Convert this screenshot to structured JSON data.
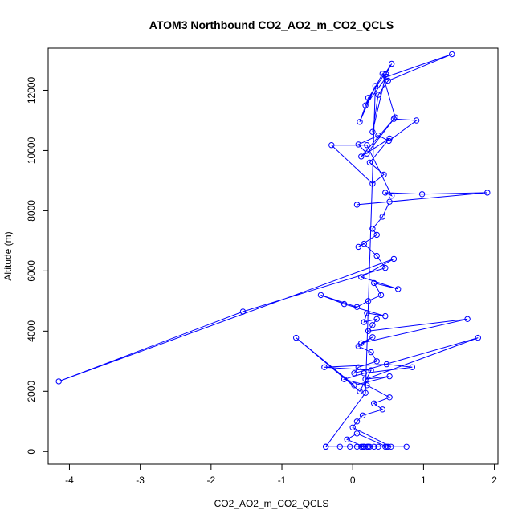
{
  "chart_data": {
    "type": "scatter",
    "title": "ATOM3 Northbound CO2_AO2_m_CO2_QCLS",
    "xlabel": "CO2_AO2_m_CO2_QCLS",
    "ylabel": "Altitude (m)",
    "xlim": [
      -4.3,
      2.05
    ],
    "ylim": [
      -420,
      13400
    ],
    "xticks": [
      -4,
      -3,
      -2,
      -1,
      0,
      1,
      2
    ],
    "xtick_labels": [
      "-4",
      "-3",
      "-2",
      "-1",
      "0",
      "1",
      "2"
    ],
    "yticks": [
      0,
      2000,
      4000,
      6000,
      8000,
      10000,
      12000
    ],
    "ytick_labels": [
      "0",
      "2000",
      "4000",
      "6000",
      "8000",
      "10000",
      "12000"
    ],
    "grid": false,
    "series_color": "#0000ff",
    "marker": "open-circle",
    "connected": true,
    "series": [
      {
        "x": [
          -0.38,
          0.18,
          0.32,
          0.1,
          0.22,
          0.55,
          0.47,
          0.28,
          0.36,
          0.5,
          1.4,
          0.48,
          0.18,
          0.42,
          0.6,
          0.2,
          0.08,
          0.36,
          0.51,
          0.9,
          0.58,
          0.12,
          0.52,
          0.24,
          0.44,
          0.28,
          -0.3,
          0.2,
          0.55,
          0.46,
          0.98,
          1.9,
          0.06,
          0.52,
          0.42,
          0.28,
          0.34,
          0.08,
          0.16,
          0.34,
          0.46,
          -1.55,
          -4.15,
          0.58,
          0.12,
          0.64,
          0.3,
          0.4,
          0.22,
          0.06,
          -0.45,
          -0.12,
          0.46,
          0.2,
          0.16,
          0.34,
          0.28,
          0.22,
          1.62,
          0.12,
          0.28,
          0.08,
          0.26,
          0.34,
          0.08,
          0.02,
          1.77,
          0.18,
          0.52,
          0.02,
          -0.8,
          0.1,
          0.26,
          -0.4,
          0.48,
          0.84,
          0.16,
          -0.12,
          0.2,
          0.52,
          0.3,
          0.42,
          0.14,
          0.06,
          0.0,
          0.54,
          0.48,
          0.06,
          -0.08,
          0.16,
          0.76,
          -0.38,
          0.22,
          0.12,
          -0.04,
          0.2,
          0.36,
          0.24,
          0.5,
          0.14,
          0.3,
          0.22,
          -0.18,
          0.06,
          0.16,
          0.46
        ],
        "y": [
          160,
          1950,
          12150,
          10950,
          11750,
          12880,
          12540,
          10620,
          11850,
          12320,
          13200,
          12450,
          11500,
          12550,
          11100,
          9900,
          10200,
          10500,
          10320,
          11000,
          11050,
          9800,
          10400,
          9600,
          9200,
          8900,
          10180,
          10180,
          8500,
          8600,
          8550,
          8600,
          8200,
          8300,
          7800,
          7400,
          7200,
          6800,
          6900,
          6500,
          6100,
          4650,
          2330,
          6400,
          5800,
          5400,
          5600,
          5200,
          5000,
          4800,
          5200,
          4900,
          4500,
          4600,
          4300,
          4400,
          4200,
          4000,
          4400,
          3600,
          3800,
          3500,
          3300,
          3000,
          2800,
          2600,
          3780,
          2400,
          2500,
          2200,
          3780,
          2000,
          2700,
          2800,
          2900,
          2800,
          2600,
          2400,
          2200,
          1800,
          1600,
          1400,
          1200,
          1000,
          800,
          160,
          160,
          600,
          400,
          160,
          160,
          160,
          160,
          160,
          160,
          160,
          160,
          160,
          160,
          160,
          160,
          160,
          160,
          160,
          160,
          160
        ]
      }
    ]
  }
}
